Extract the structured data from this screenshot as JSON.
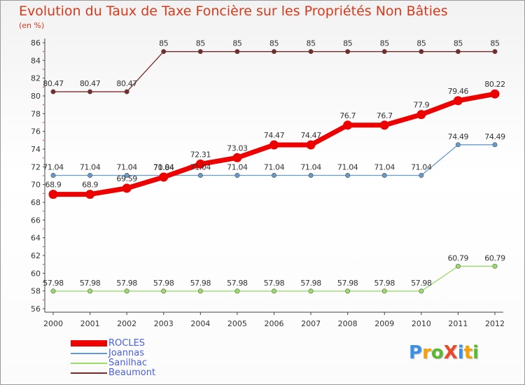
{
  "title": "Evolution du Taux de Taxe Foncière sur les Propriétés Non Bâties",
  "unit_label": "(en %)",
  "logo": {
    "text": "ProXiti",
    "letters": [
      "P",
      "r",
      "o",
      "X",
      "i",
      "t",
      "i"
    ],
    "colors": [
      "#3c8fe6",
      "#f5a00a",
      "#5cb82e",
      "#e84a2a",
      "#3c8fe6",
      "#f5a00a",
      "#5cb82e"
    ]
  },
  "chart_data": {
    "type": "line",
    "title": "Evolution du Taux de Taxe Foncière sur les Propriétés Non Bâties",
    "ylabel": "(en %)",
    "xlabel": "",
    "x": [
      "2000",
      "2001",
      "2002",
      "2003",
      "2004",
      "2005",
      "2006",
      "2007",
      "2008",
      "2009",
      "2010",
      "2011",
      "2012"
    ],
    "ylim": [
      56,
      86
    ],
    "yticks": [
      56,
      58,
      60,
      62,
      64,
      66,
      68,
      70,
      72,
      74,
      76,
      78,
      80,
      82,
      84,
      86
    ],
    "grid": false,
    "legend_position": "bottom-left",
    "series": [
      {
        "name": "ROCLES",
        "color": "#ee0000",
        "emphasis": true,
        "values": [
          68.9,
          68.9,
          69.59,
          70.84,
          72.31,
          73.03,
          74.47,
          74.47,
          76.7,
          76.7,
          77.9,
          79.46,
          80.22
        ],
        "labels": [
          "68.9",
          "68.9",
          "69.59",
          "70.84",
          "72.31",
          "73.03",
          "74.47",
          "74.47",
          "76.7",
          "76.7",
          "77.9",
          "79.46",
          "80.22"
        ]
      },
      {
        "name": "Joannas",
        "color": "#6699cc",
        "emphasis": false,
        "values": [
          71.04,
          71.04,
          71.04,
          71.04,
          71.04,
          71.04,
          71.04,
          71.04,
          71.04,
          71.04,
          71.04,
          74.49,
          74.49
        ],
        "labels": [
          "71.04",
          "71.04",
          "71.04",
          "71.04",
          "71.04",
          "71.04",
          "71.04",
          "71.04",
          "71.04",
          "71.04",
          "71.04",
          "74.49",
          "74.49"
        ]
      },
      {
        "name": "Sanilhac",
        "color": "#99dd66",
        "emphasis": false,
        "values": [
          57.98,
          57.98,
          57.98,
          57.98,
          57.98,
          57.98,
          57.98,
          57.98,
          57.98,
          57.98,
          57.98,
          60.79,
          60.79
        ],
        "labels": [
          "57.98",
          "57.98",
          "57.98",
          "57.98",
          "57.98",
          "57.98",
          "57.98",
          "57.98",
          "57.98",
          "57.98",
          "57.98",
          "60.79",
          "60.79"
        ]
      },
      {
        "name": "Beaumont",
        "color": "#7a2a2a",
        "emphasis": false,
        "values": [
          80.47,
          80.47,
          80.47,
          85,
          85,
          85,
          85,
          85,
          85,
          85,
          85,
          85,
          85
        ],
        "labels": [
          "80.47",
          "80.47",
          "80.47",
          "85",
          "85",
          "85",
          "85",
          "85",
          "85",
          "85",
          "85",
          "85",
          "85"
        ]
      }
    ]
  }
}
